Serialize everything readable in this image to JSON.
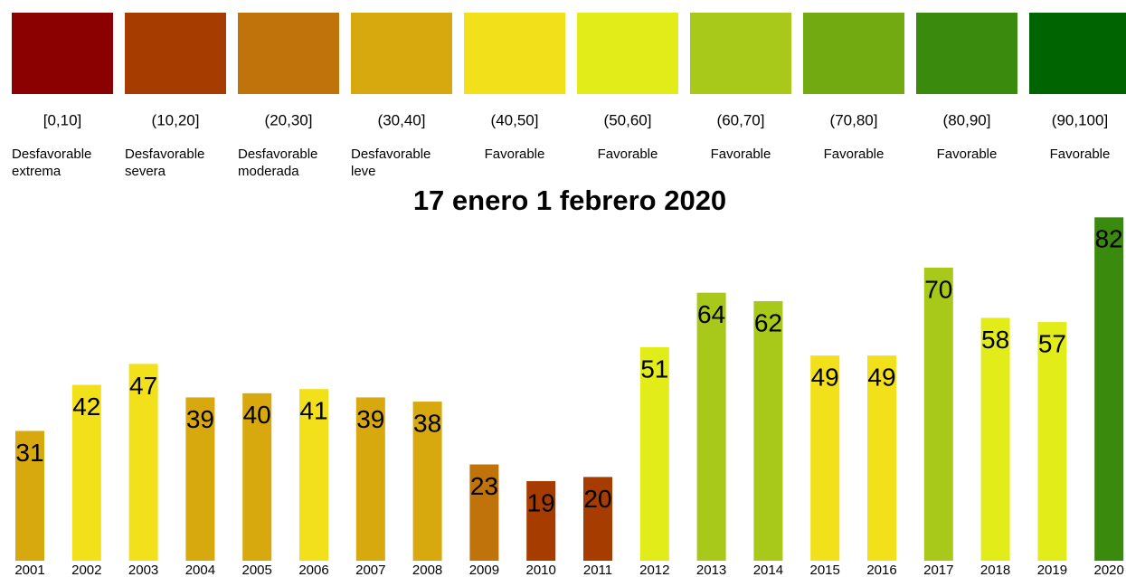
{
  "chart_data": {
    "type": "bar",
    "title": "17 enero 1 febrero 2020",
    "legend": [
      {
        "range": "[0,10]",
        "label": "Desfavorable extrema",
        "color": "#8b0000"
      },
      {
        "range": "(10,20]",
        "label": "Desfavorable severa",
        "color": "#a63c00"
      },
      {
        "range": "(20,30]",
        "label": "Desfavorable moderada",
        "color": "#c0730a"
      },
      {
        "range": "(30,40]",
        "label": "Desfavorable leve",
        "color": "#d8a90e"
      },
      {
        "range": "(40,50]",
        "label": "Favorable",
        "color": "#f2e01a"
      },
      {
        "range": "(50,60]",
        "label": "Favorable",
        "color": "#e2ec18"
      },
      {
        "range": "(60,70]",
        "label": "Favorable",
        "color": "#a8c91a"
      },
      {
        "range": "(70,80]",
        "label": "Favorable",
        "color": "#72aa12"
      },
      {
        "range": "(80,90]",
        "label": "Favorable",
        "color": "#3a8a0d"
      },
      {
        "range": "(90,100]",
        "label": "Favorable",
        "color": "#006400"
      }
    ],
    "categories": [
      "2001",
      "2002",
      "2003",
      "2004",
      "2005",
      "2006",
      "2007",
      "2008",
      "2009",
      "2010",
      "2011",
      "2012",
      "2013",
      "2014",
      "2015",
      "2016",
      "2017",
      "2018",
      "2019",
      "2020"
    ],
    "values": [
      31,
      42,
      47,
      39,
      40,
      41,
      39,
      38,
      23,
      19,
      20,
      51,
      64,
      62,
      49,
      49,
      70,
      58,
      57,
      82
    ],
    "colors": [
      "#d8a90e",
      "#f2e01a",
      "#f2e01a",
      "#d8a90e",
      "#d8a90e",
      "#f2e01a",
      "#d8a90e",
      "#d8a90e",
      "#c0730a",
      "#a63c00",
      "#a63c00",
      "#e2ec18",
      "#a8c91a",
      "#a8c91a",
      "#f2e01a",
      "#f2e01a",
      "#a8c91a",
      "#e2ec18",
      "#e2ec18",
      "#3a8a0d"
    ]
  }
}
